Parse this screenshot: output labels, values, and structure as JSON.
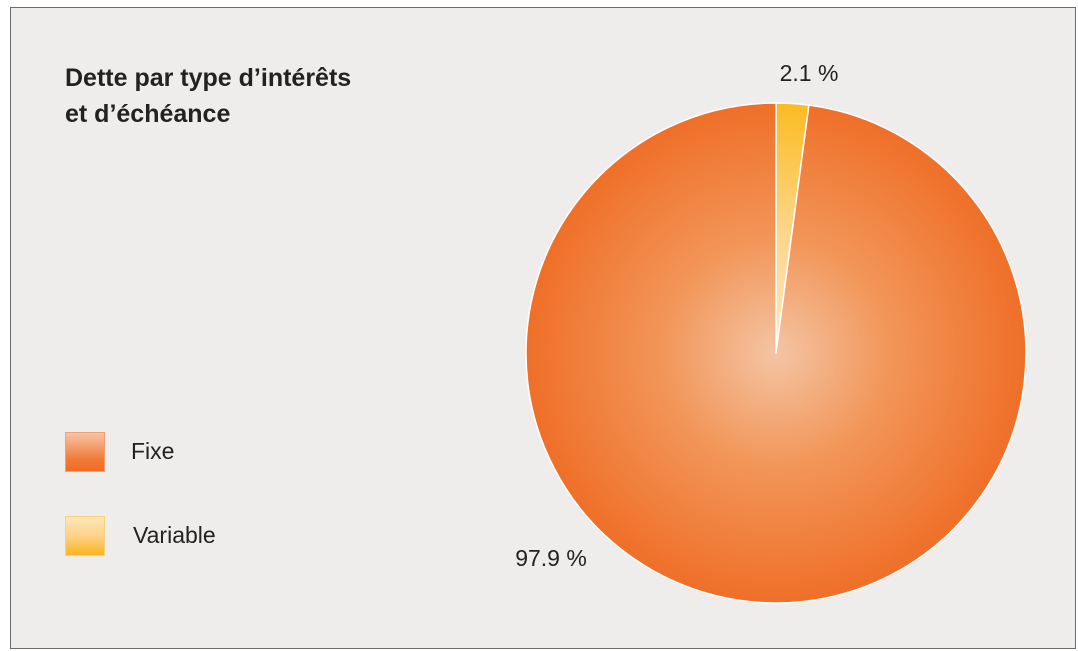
{
  "chart_data": {
    "type": "pie",
    "title": "Dette par type d’intérêts et d’échéance",
    "title_lines": [
      "Dette par type d’intérêts",
      "et d’échéance"
    ],
    "legend_position": "left",
    "slices": [
      {
        "name": "Fixe",
        "value": 97.9,
        "label": "97.9 %",
        "color": "#f0752f"
      },
      {
        "name": "Variable",
        "value": 2.1,
        "label": "2.1 %",
        "color": "#fbbd2b"
      }
    ]
  }
}
